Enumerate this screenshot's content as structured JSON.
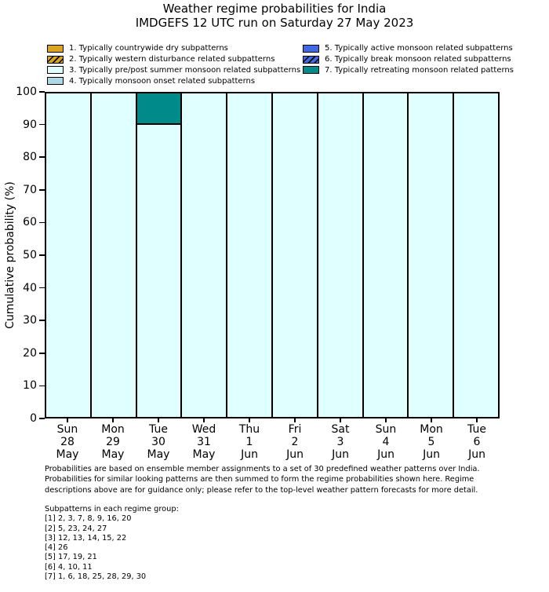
{
  "title": "Weather regime probabilities for India",
  "subtitle": "IMDGEFS 12 UTC run on Saturday 27 May 2023",
  "ylabel": "Cumulative probability (%)",
  "legend": {
    "column_split": 4
  },
  "chart_data": {
    "type": "bar",
    "stacked": true,
    "ylim": [
      0,
      100
    ],
    "yticks": [
      0,
      10,
      20,
      30,
      40,
      50,
      60,
      70,
      80,
      90,
      100
    ],
    "grid": false,
    "legend_position": "top",
    "categories": [
      [
        "Sun",
        "28",
        "May"
      ],
      [
        "Mon",
        "29",
        "May"
      ],
      [
        "Tue",
        "30",
        "May"
      ],
      [
        "Wed",
        "31",
        "May"
      ],
      [
        "Thu",
        "1",
        "Jun"
      ],
      [
        "Fri",
        "2",
        "Jun"
      ],
      [
        "Sat",
        "3",
        "Jun"
      ],
      [
        "Sun",
        "4",
        "Jun"
      ],
      [
        "Mon",
        "5",
        "Jun"
      ],
      [
        "Tue",
        "6",
        "Jun"
      ]
    ],
    "series": [
      {
        "name": "1. Typically countrywide dry subpatterns",
        "color": "#DAA520",
        "hatch": false,
        "values": [
          0,
          0,
          0,
          0,
          0,
          0,
          0,
          0,
          0,
          0
        ]
      },
      {
        "name": "2. Typically western disturbance related subpatterns",
        "color": "#DAA520",
        "hatch": true,
        "values": [
          0,
          0,
          0,
          0,
          0,
          0,
          0,
          0,
          0,
          0
        ]
      },
      {
        "name": "3. Typically pre/post summer monsoon related subpatterns",
        "color": "#E0FFFF",
        "hatch": false,
        "values": [
          100,
          100,
          90.3,
          100,
          100,
          100,
          100,
          100,
          100,
          100
        ]
      },
      {
        "name": "4. Typically monsoon onset related subpatterns",
        "color": "#ADD8E6",
        "hatch": false,
        "values": [
          0,
          0,
          0,
          0,
          0,
          0,
          0,
          0,
          0,
          0
        ]
      },
      {
        "name": "5. Typically active monsoon related subpatterns",
        "color": "#4169E1",
        "hatch": false,
        "values": [
          0,
          0,
          0,
          0,
          0,
          0,
          0,
          0,
          0,
          0
        ]
      },
      {
        "name": "6. Typically break monsoon related subpatterns",
        "color": "#4169E1",
        "hatch": true,
        "values": [
          0,
          0,
          0,
          0,
          0,
          0,
          0,
          0,
          0,
          0
        ]
      },
      {
        "name": "7. Typically retreating monsoon related patterns",
        "color": "#008B8B",
        "hatch": false,
        "values": [
          0,
          0,
          9.7,
          0,
          0,
          0,
          0,
          0,
          0,
          0
        ]
      }
    ]
  },
  "footer": {
    "para": "Probabilities are based on ensemble member assignments to a set of 30 predefined weather patterns over India. Probabilities for similar looking patterns are then summed to form the regime probabilities shown here. Regime descriptions above are for guidance only; please refer to the top-level weather pattern forecasts for more detail.",
    "subpatterns_title": "Subpatterns in each regime group:",
    "subpatterns": [
      "[1] 2, 3, 7, 8, 9, 16, 20",
      "[2] 5, 23, 24, 27",
      "[3] 12, 13, 14, 15, 22",
      "[4] 26",
      "[5] 17, 19, 21",
      "[6] 4, 10, 11",
      "[7] 1, 6, 18, 25, 28, 29, 30"
    ]
  }
}
